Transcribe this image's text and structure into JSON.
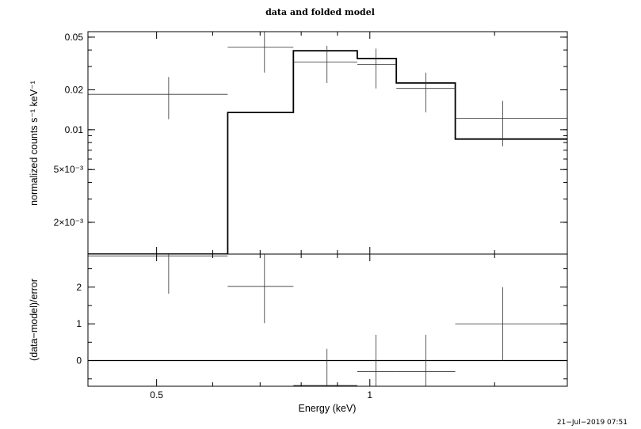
{
  "title": "data and folded model",
  "timestamp": "21−Jul−2019 07:51",
  "colors": {
    "line": "#000000",
    "data": "#333333",
    "background": "#ffffff"
  },
  "chart_data": [
    {
      "type": "line",
      "panel": "spectrum",
      "ylabel": "normalized counts s⁻¹ keV⁻¹",
      "xscale": "log",
      "yscale": "log",
      "xlim": [
        0.4,
        1.9
      ],
      "ylim": [
        0.00115,
        0.055
      ],
      "yticks": [
        {
          "v": 0.05,
          "label": "0.05"
        },
        {
          "v": 0.02,
          "label": "0.02"
        },
        {
          "v": 0.01,
          "label": "0.01"
        },
        {
          "v": 0.005,
          "label": "5×10⁻³"
        },
        {
          "v": 0.002,
          "label": "2×10⁻³"
        }
      ],
      "series": [
        {
          "role": "data",
          "points": [
            {
              "xlo": 0.4,
              "xhi": 0.63,
              "x": 0.52,
              "y": 0.0185,
              "ylo": 0.012,
              "yhi": 0.025
            },
            {
              "xlo": 0.63,
              "xhi": 0.78,
              "x": 0.71,
              "y": 0.042,
              "ylo": 0.027,
              "yhi": 0.058
            },
            {
              "xlo": 0.78,
              "xhi": 0.96,
              "x": 0.87,
              "y": 0.0325,
              "ylo": 0.0225,
              "yhi": 0.043
            },
            {
              "xlo": 0.96,
              "xhi": 1.09,
              "x": 1.02,
              "y": 0.031,
              "ylo": 0.0205,
              "yhi": 0.041
            },
            {
              "xlo": 1.09,
              "xhi": 1.32,
              "x": 1.2,
              "y": 0.0205,
              "ylo": 0.0135,
              "yhi": 0.027
            },
            {
              "xlo": 1.32,
              "xhi": 1.9,
              "x": 1.54,
              "y": 0.0122,
              "ylo": 0.0075,
              "yhi": 0.0165
            }
          ]
        },
        {
          "role": "model",
          "bins": [
            {
              "xlo": 0.4,
              "xhi": 0.63,
              "y": 0.00115
            },
            {
              "xlo": 0.63,
              "xhi": 0.78,
              "y": 0.0135
            },
            {
              "xlo": 0.78,
              "xhi": 0.96,
              "y": 0.0395
            },
            {
              "xlo": 0.96,
              "xhi": 1.09,
              "y": 0.0345
            },
            {
              "xlo": 1.09,
              "xhi": 1.32,
              "y": 0.0225
            },
            {
              "xlo": 1.32,
              "xhi": 1.9,
              "y": 0.0085
            }
          ]
        }
      ]
    },
    {
      "type": "scatter",
      "panel": "residuals",
      "xlabel": "Energy (keV)",
      "ylabel": "(data−model)/error",
      "xscale": "log",
      "xlim": [
        0.4,
        1.9
      ],
      "ylim": [
        -0.7,
        2.9
      ],
      "xticks": [
        {
          "v": 0.5,
          "label": "0.5"
        },
        {
          "v": 1,
          "label": "1"
        }
      ],
      "yticks": [
        {
          "v": 2,
          "label": "2"
        },
        {
          "v": 1,
          "label": "1"
        },
        {
          "v": 0,
          "label": "0"
        }
      ],
      "zero_line": 0,
      "points": [
        {
          "xlo": 0.4,
          "xhi": 0.63,
          "x": 0.52,
          "y": 2.85,
          "ylo": 1.82,
          "yhi": 3.8
        },
        {
          "xlo": 0.63,
          "xhi": 0.78,
          "x": 0.71,
          "y": 2.02,
          "ylo": 1.02,
          "yhi": 3.0
        },
        {
          "xlo": 0.78,
          "xhi": 0.96,
          "x": 0.87,
          "y": -0.68,
          "ylo": -1.6,
          "yhi": 0.32
        },
        {
          "xlo": 0.96,
          "xhi": 1.09,
          "x": 1.02,
          "y": -0.3,
          "ylo": -1.3,
          "yhi": 0.7
        },
        {
          "xlo": 1.09,
          "xhi": 1.32,
          "x": 1.2,
          "y": -0.3,
          "ylo": -1.3,
          "yhi": 0.7
        },
        {
          "xlo": 1.32,
          "xhi": 1.9,
          "x": 1.54,
          "y": 1.0,
          "ylo": 0.0,
          "yhi": 2.0
        }
      ]
    }
  ]
}
